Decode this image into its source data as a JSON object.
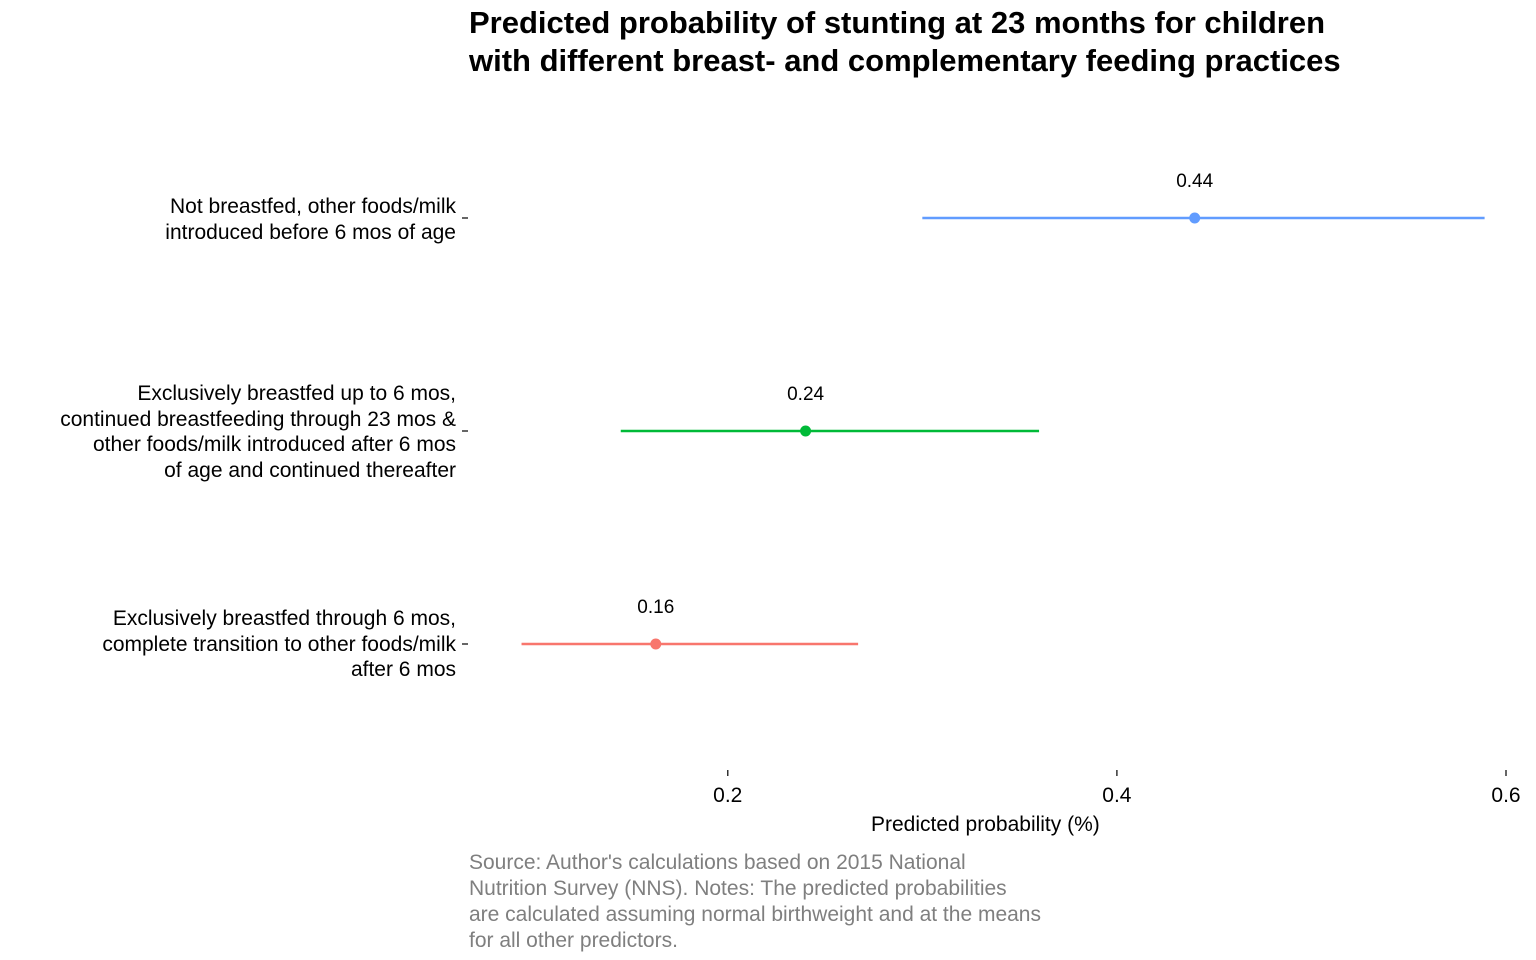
{
  "chart_data": {
    "type": "pointrange",
    "title_lines": [
      "Predicted probability of stunting at 23 months for children",
      "with different breast- and complementary feeding practices"
    ],
    "xlabel": "Predicted probability (%)",
    "ylabel": "",
    "xlim": [
      0.067,
      0.6
    ],
    "x_ticks": [
      {
        "value": 0.2,
        "label": "0.2"
      },
      {
        "value": 0.4,
        "label": "0.4"
      },
      {
        "value": 0.6,
        "label": "0.6"
      }
    ],
    "grid": false,
    "legend": "none",
    "categories": [
      {
        "label_lines": [
          "Not breastfed, other foods/milk",
          "introduced before 6 mos of age"
        ],
        "estimate": 0.44,
        "estimate_label": "0.44",
        "lower": 0.3,
        "upper": 0.589,
        "color": "#619CFF"
      },
      {
        "label_lines": [
          "Exclusively breastfed up to 6 mos,",
          "continued breastfeeding through 23 mos &",
          "other foods/milk introduced after 6 mos",
          "of age and continued thereafter"
        ],
        "estimate": 0.24,
        "estimate_label": "0.24",
        "lower": 0.145,
        "upper": 0.36,
        "color": "#00BA38"
      },
      {
        "label_lines": [
          "Exclusively breastfed through 6 mos,",
          "complete transition to other foods/milk",
          "after 6 mos"
        ],
        "estimate": 0.163,
        "estimate_label": "0.16",
        "lower": 0.094,
        "upper": 0.267,
        "color": "#F8766D"
      }
    ],
    "caption_lines": [
      "Source: Author's calculations based on 2015 National",
      "Nutrition Survey (NNS). Notes: The predicted probabilities",
      "are calculated assuming normal birthweight and at the means",
      "for all other predictors."
    ]
  }
}
